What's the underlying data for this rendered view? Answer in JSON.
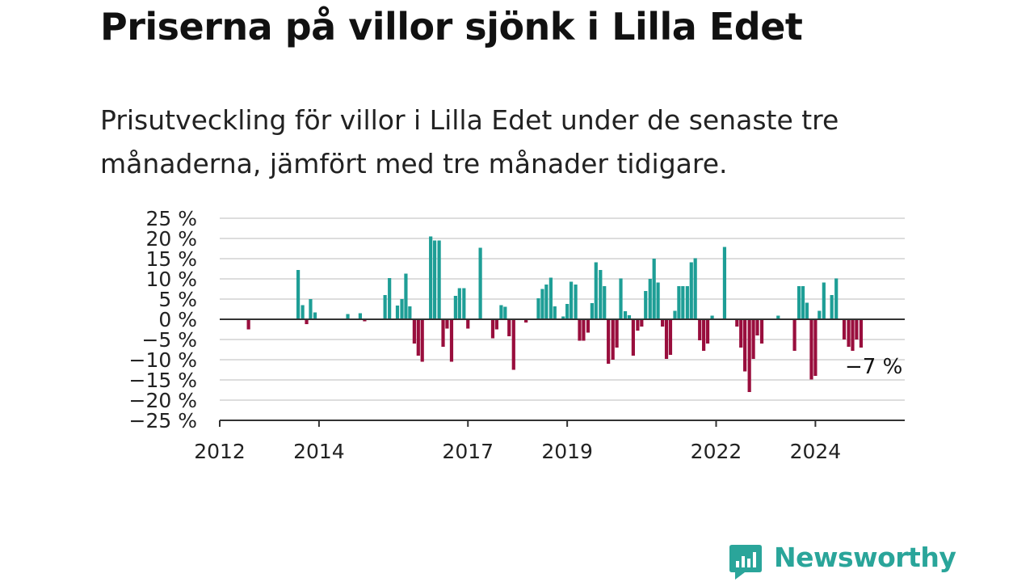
{
  "title": "Priserna på villor sjönk i Lilla Edet",
  "subtitle": "Prisutveckling för villor i Lilla Edet under de senaste tre månaderna, jämfört med tre månader tidigare.",
  "logo_text": "Newsworthy",
  "colors": {
    "positive": "#1e9e96",
    "negative": "#990e3d",
    "grid": "#dddddd",
    "axis": "#333333",
    "logo": "#2aa59a"
  },
  "chart_data": {
    "type": "bar",
    "unit": "%",
    "ylim": [
      -25,
      25
    ],
    "yticks": [
      25,
      20,
      15,
      10,
      5,
      0,
      -5,
      -10,
      -15,
      -20,
      -25
    ],
    "ytick_labels": [
      "25 %",
      "20 %",
      "15 %",
      "10 %",
      "5 %",
      "0 %",
      "−5 %",
      "−10 %",
      "−15 %",
      "−20 %",
      "−25 %"
    ],
    "xlim": [
      2012,
      2025.8
    ],
    "xticks": [
      2012,
      2014,
      2017,
      2019,
      2022,
      2024
    ],
    "grid": true,
    "last_label": "−7 %",
    "series": [
      {
        "values": [
          [
            2012.58,
            -2.5
          ],
          [
            2013.58,
            12.2
          ],
          [
            2013.67,
            3.5
          ],
          [
            2013.75,
            -1.2
          ],
          [
            2013.83,
            5.0
          ],
          [
            2013.92,
            1.7
          ],
          [
            2014.58,
            1.3
          ],
          [
            2014.83,
            1.5
          ],
          [
            2014.92,
            -0.5
          ],
          [
            2015.33,
            6.0
          ],
          [
            2015.42,
            10.2
          ],
          [
            2015.58,
            3.4
          ],
          [
            2015.67,
            5.0
          ],
          [
            2015.75,
            11.3
          ],
          [
            2015.83,
            3.2
          ],
          [
            2015.92,
            -6.0
          ],
          [
            2016.0,
            -9.0
          ],
          [
            2016.08,
            -10.5
          ],
          [
            2016.25,
            20.5
          ],
          [
            2016.33,
            19.5
          ],
          [
            2016.42,
            19.5
          ],
          [
            2016.5,
            -6.8
          ],
          [
            2016.58,
            -2.3
          ],
          [
            2016.67,
            -10.5
          ],
          [
            2016.75,
            5.8
          ],
          [
            2016.83,
            7.7
          ],
          [
            2016.92,
            7.7
          ],
          [
            2017.0,
            -2.3
          ],
          [
            2017.25,
            17.7
          ],
          [
            2017.5,
            -4.7
          ],
          [
            2017.58,
            -2.5
          ],
          [
            2017.67,
            3.5
          ],
          [
            2017.75,
            3.1
          ],
          [
            2017.83,
            -4.2
          ],
          [
            2017.92,
            -12.5
          ],
          [
            2018.17,
            -0.8
          ],
          [
            2018.42,
            5.2
          ],
          [
            2018.5,
            7.5
          ],
          [
            2018.58,
            8.6
          ],
          [
            2018.67,
            10.3
          ],
          [
            2018.75,
            3.2
          ],
          [
            2018.92,
            0.7
          ],
          [
            2019.0,
            3.8
          ],
          [
            2019.08,
            9.3
          ],
          [
            2019.17,
            8.6
          ],
          [
            2019.25,
            -5.3
          ],
          [
            2019.33,
            -5.3
          ],
          [
            2019.42,
            -3.3
          ],
          [
            2019.5,
            4.0
          ],
          [
            2019.58,
            14.1
          ],
          [
            2019.67,
            12.2
          ],
          [
            2019.75,
            8.2
          ],
          [
            2019.83,
            -11.0
          ],
          [
            2019.92,
            -10.0
          ],
          [
            2020.0,
            -7.0
          ],
          [
            2020.08,
            10.1
          ],
          [
            2020.17,
            2.0
          ],
          [
            2020.25,
            1.0
          ],
          [
            2020.33,
            -9.0
          ],
          [
            2020.42,
            -2.8
          ],
          [
            2020.5,
            -1.8
          ],
          [
            2020.58,
            7.0
          ],
          [
            2020.67,
            10.0
          ],
          [
            2020.75,
            15.0
          ],
          [
            2020.83,
            9.1
          ],
          [
            2020.92,
            -1.8
          ],
          [
            2021.0,
            -9.8
          ],
          [
            2021.08,
            -8.8
          ],
          [
            2021.17,
            2.1
          ],
          [
            2021.25,
            8.2
          ],
          [
            2021.33,
            8.2
          ],
          [
            2021.42,
            8.2
          ],
          [
            2021.5,
            14.1
          ],
          [
            2021.58,
            15.1
          ],
          [
            2021.67,
            -5.2
          ],
          [
            2021.75,
            -7.8
          ],
          [
            2021.83,
            -6.0
          ],
          [
            2021.92,
            0.9
          ],
          [
            2022.17,
            17.9
          ],
          [
            2022.42,
            -1.8
          ],
          [
            2022.5,
            -7.0
          ],
          [
            2022.58,
            -12.9
          ],
          [
            2022.67,
            -18.0
          ],
          [
            2022.75,
            -9.8
          ],
          [
            2022.83,
            -4.0
          ],
          [
            2022.92,
            -6.0
          ],
          [
            2023.25,
            0.9
          ],
          [
            2023.58,
            -7.8
          ],
          [
            2023.67,
            8.2
          ],
          [
            2023.75,
            8.2
          ],
          [
            2023.83,
            4.1
          ],
          [
            2023.92,
            -14.9
          ],
          [
            2024.0,
            -14.0
          ],
          [
            2024.08,
            2.1
          ],
          [
            2024.17,
            9.1
          ],
          [
            2024.33,
            6.0
          ],
          [
            2024.42,
            10.1
          ],
          [
            2024.58,
            -5.0
          ],
          [
            2024.67,
            -6.8
          ],
          [
            2024.75,
            -7.8
          ],
          [
            2024.83,
            -5.0
          ],
          [
            2024.92,
            -7.0
          ]
        ]
      }
    ]
  }
}
